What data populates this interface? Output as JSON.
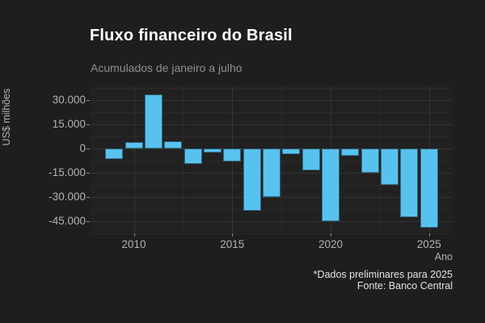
{
  "colors": {
    "figure_background": "#1e1e1e",
    "panel_background": "#212121",
    "bar_fill": "#58c2ef",
    "title_text": "#ffffff",
    "subtitle_text": "#8f8f8f",
    "tick_text": "#b3b3b3",
    "caption_text": "#e3e3e3",
    "grid_major": "#343434",
    "grid_minor": "#2a2a2a"
  },
  "chart_data": {
    "type": "bar",
    "title": "Fluxo financeiro do Brasil",
    "subtitle": "Acumulados de janeiro a julho",
    "xlabel": "Ano",
    "ylabel": "US$ milhões",
    "caption_line1": "*Dados preliminares para 2025",
    "caption_line2": "Fonte: Banco Central",
    "legend": "none",
    "grid": "major+minor",
    "categories": [
      2009,
      2010,
      2011,
      2012,
      2013,
      2014,
      2015,
      2016,
      2017,
      2018,
      2019,
      2020,
      2021,
      2022,
      2023,
      2024,
      2025
    ],
    "values": [
      -6600,
      3800,
      33400,
      4300,
      -9300,
      -2700,
      -8000,
      -38700,
      -30100,
      -3500,
      -13700,
      -45200,
      -4400,
      -15200,
      -22300,
      -42600,
      -49100
    ],
    "units": "US$ milhões",
    "xlim": [
      2007.8,
      2026.2
    ],
    "ylim": [
      -52000,
      38500
    ],
    "x_ticks": [
      {
        "v": 2010,
        "label": "2010"
      },
      {
        "v": 2015,
        "label": "2015"
      },
      {
        "v": 2020,
        "label": "2020"
      },
      {
        "v": 2025,
        "label": "2025"
      }
    ],
    "y_ticks": [
      {
        "v": 30000,
        "label": "30.000"
      },
      {
        "v": 15000,
        "label": "15.000"
      },
      {
        "v": 0,
        "label": "0"
      },
      {
        "v": -15000,
        "label": "-15.000"
      },
      {
        "v": -30000,
        "label": "-30.000"
      },
      {
        "v": -45000,
        "label": "-45.000"
      }
    ],
    "x_minor_ticks": [
      2012.5,
      2017.5,
      2022.5
    ],
    "y_minor_ticks": [
      37500,
      22500,
      7500,
      -7500,
      -22500,
      -37500,
      -52500
    ]
  }
}
